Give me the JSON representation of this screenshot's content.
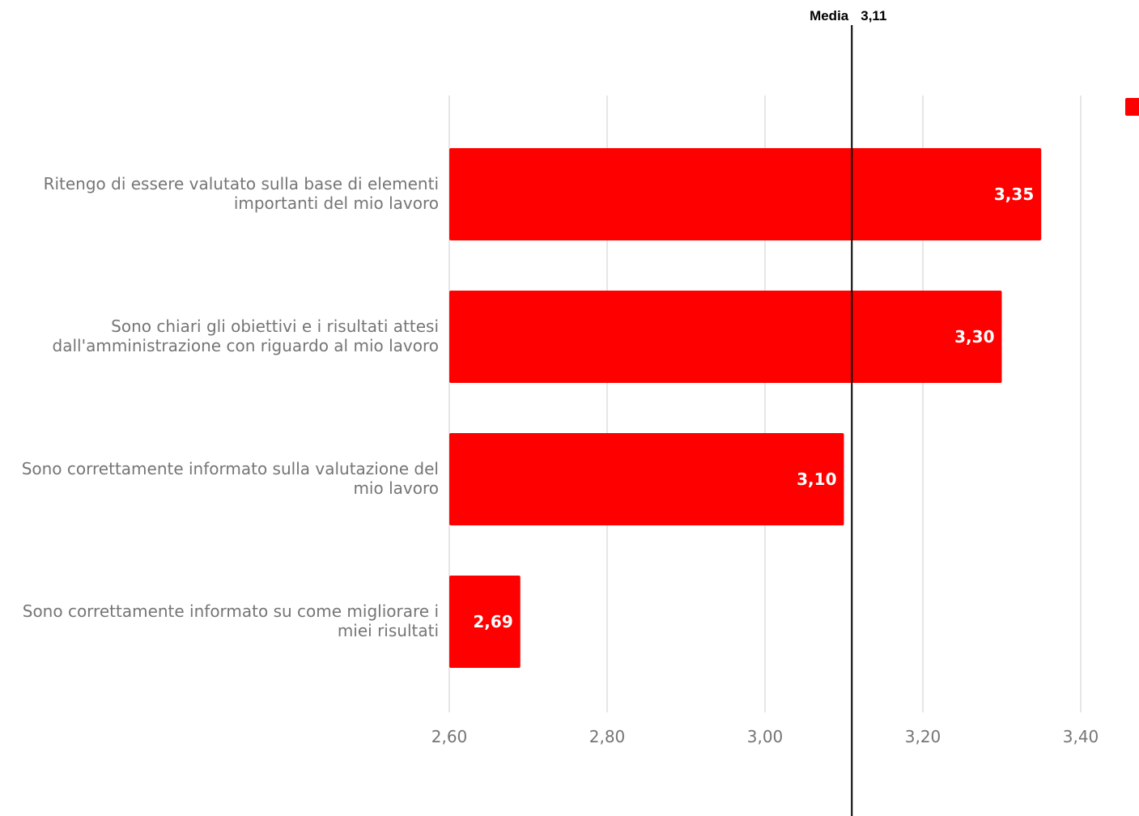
{
  "chart_data": {
    "type": "bar",
    "orientation": "horizontal",
    "categories": [
      "Ritengo di essere valutato sulla base di elementi importanti del mio lavoro",
      "Sono chiari gli obiettivi e i risultati attesi dall'amministrazione con riguardo al mio lavoro",
      "Sono correttamente informato sulla valutazione del mio lavoro",
      "Sono correttamente informato su come migliorare i miei risultati"
    ],
    "category_lines": [
      [
        "Ritengo di essere valutato sulla base di elementi",
        "importanti del mio lavoro"
      ],
      [
        "Sono chiari gli obiettivi e i risultati attesi",
        "dall'amministrazione con riguardo al mio lavoro"
      ],
      [
        "Sono correttamente informato sulla valutazione del",
        "mio lavoro"
      ],
      [
        "Sono correttamente informato su come migliorare i",
        "miei risultati"
      ]
    ],
    "values": [
      3.35,
      3.3,
      3.1,
      2.69
    ],
    "data_labels": [
      "3,35",
      "3,30",
      "3,10",
      "2,69"
    ],
    "xlim": [
      2.6,
      3.4
    ],
    "xticks": [
      2.6,
      2.8,
      3.0,
      3.2,
      3.4
    ],
    "xtick_labels": [
      "2,60",
      "2,80",
      "3,00",
      "3,20",
      "3,40"
    ],
    "bar_color": "#ff0000",
    "grid": true,
    "legend": "top-right",
    "reference_line": {
      "label": "Media",
      "value": 3.11,
      "value_label": "3,11"
    }
  }
}
